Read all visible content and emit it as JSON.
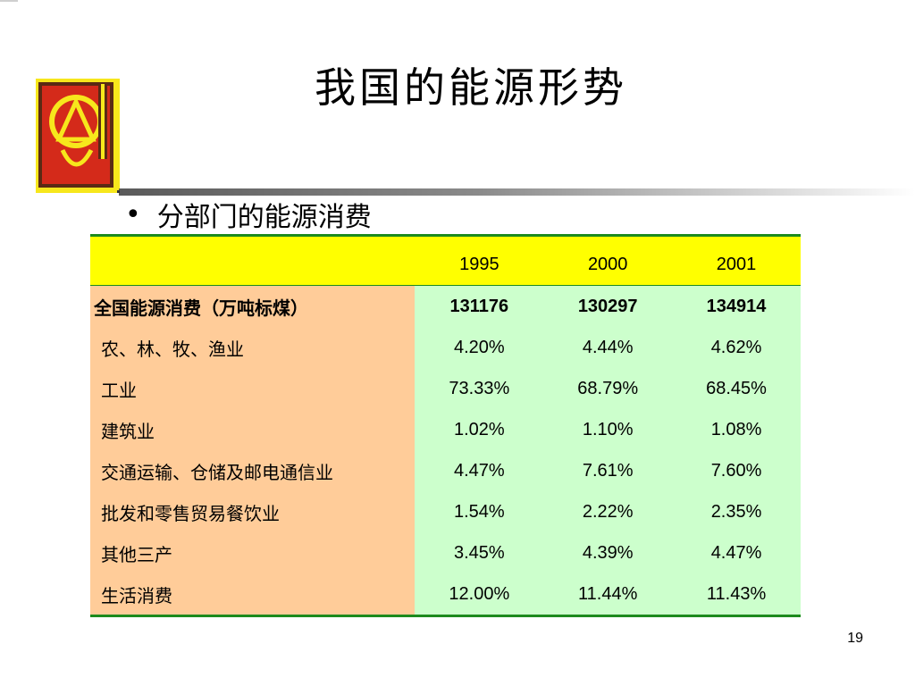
{
  "slide": {
    "title": "我国的能源形势",
    "bullet": "分部门的能源消费",
    "page_number": "19"
  },
  "table": {
    "columns": [
      "",
      "1995",
      "2000",
      "2001"
    ],
    "rows": [
      {
        "label": "全国能源消费（万吨标煤）",
        "values": [
          "131176",
          "130297",
          "134914"
        ]
      },
      {
        "label": "农、林、牧、渔业",
        "values": [
          "4.20%",
          "4.44%",
          "4.62%"
        ]
      },
      {
        "label": "工业",
        "values": [
          "73.33%",
          "68.79%",
          "68.45%"
        ]
      },
      {
        "label": "建筑业",
        "values": [
          "1.02%",
          "1.10%",
          "1.08%"
        ]
      },
      {
        "label": "交通运输、仓储及邮电通信业",
        "values": [
          "4.47%",
          "7.61%",
          "7.60%"
        ]
      },
      {
        "label": "批发和零售贸易餐饮业",
        "values": [
          "1.54%",
          "2.22%",
          "2.35%"
        ]
      },
      {
        "label": "其他三产",
        "values": [
          "3.45%",
          "4.39%",
          "4.47%"
        ]
      },
      {
        "label": "生活消费",
        "values": [
          "12.00%",
          "11.44%",
          "11.43%"
        ]
      }
    ]
  },
  "colors": {
    "header_bg": "#ffff00",
    "label_bg": "#ffcc99",
    "value_bg": "#ccffcc",
    "table_border": "#1d8a1d",
    "logo_red": "#d42a1a",
    "logo_yellow": "#f7e71c"
  }
}
